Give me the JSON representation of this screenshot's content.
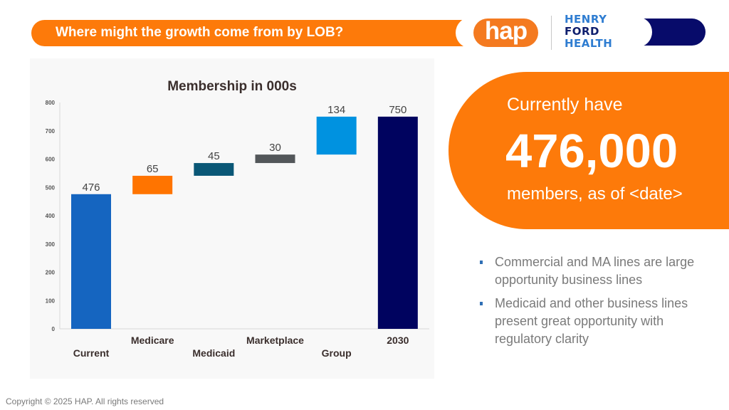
{
  "header": {
    "title": "Where might the growth come from by LOB?",
    "logos": {
      "hap": "hap",
      "hfh_line1": "HENRY",
      "hfh_line2": "FORD",
      "hfh_line3": "HEALTH"
    }
  },
  "colors": {
    "orange": "#fd7a0a",
    "navy": "#070b6a",
    "current_bar": "#1565c0",
    "medicare_bar": "#ff7400",
    "medicaid_bar": "#0a5776",
    "marketplace_bar": "#53575a",
    "group_bar": "#0092e0",
    "total_bar": "#00035f"
  },
  "chart_data": {
    "type": "bar",
    "subtype": "waterfall",
    "title": "Membership in 000s",
    "xlabel": "",
    "ylabel": "",
    "ylim": [
      0,
      800
    ],
    "yticks": [
      0,
      100,
      200,
      300,
      400,
      500,
      600,
      700,
      800
    ],
    "grid": false,
    "categories": [
      "Current",
      "Medicare",
      "Medicaid",
      "Marketplace",
      "Group",
      "2030"
    ],
    "values": [
      476,
      65,
      45,
      30,
      134,
      750
    ],
    "bases": [
      0,
      476,
      541,
      586,
      616,
      0
    ],
    "kinds": [
      "total",
      "increase",
      "increase",
      "increase",
      "increase",
      "total"
    ],
    "labels": [
      "476",
      "65",
      "45",
      "30",
      "134",
      "750"
    ],
    "bar_colors": [
      "#1565c0",
      "#ff7400",
      "#0a5776",
      "#53575a",
      "#0092e0",
      "#00035f"
    ]
  },
  "callout": {
    "line1": "Currently have",
    "number": "476,000",
    "line3": "members, as of <date>"
  },
  "bullets": [
    "Commercial and MA lines are large opportunity business lines",
    "Medicaid and other business lines present great opportunity with regulatory clarity"
  ],
  "footer": {
    "copyright": "Copyright © 2025 HAP. All rights reserved"
  }
}
